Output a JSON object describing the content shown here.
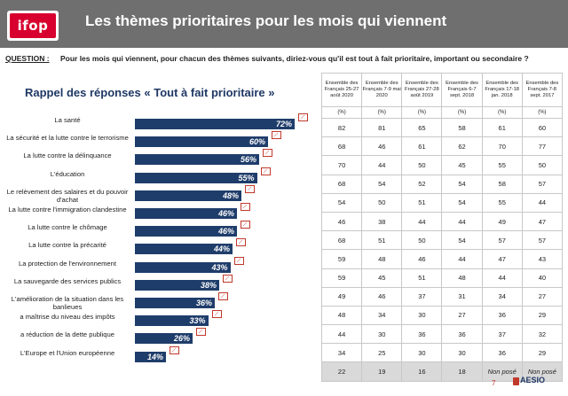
{
  "header": {
    "logo": "ifop",
    "title": "Les thèmes prioritaires pour les mois qui viennent",
    "bg_color": "#6f6f6f"
  },
  "question": {
    "label": "QUESTION :",
    "text": "Pour les mois qui viennent, pour chacun des thèmes suivants, diriez-vous qu'il est tout à fait prioritaire, important ou secondaire ?"
  },
  "subtitle": "Rappel des réponses « Tout à fait prioritaire »",
  "chart_data": {
    "type": "bar",
    "orientation": "horizontal",
    "categories": [
      "La santé",
      "La sécurité et la lutte contre le terrorisme",
      "La lutte contre la délinquance",
      "L'éducation",
      "Le relèvement des salaires et du pouvoir d'achat",
      "La lutte contre l'immigration clandestine",
      "La lutte contre le chômage",
      "La lutte contre la précarité",
      "La protection de l'environnement",
      "La sauvegarde des services publics",
      "L'amélioration de la situation dans les banlieues",
      "a maîtrise du niveau des impôts",
      "a réduction de la dette publique",
      "L'Europe et l'Union européenne"
    ],
    "values": [
      72,
      60,
      56,
      55,
      48,
      46,
      46,
      44,
      43,
      38,
      36,
      33,
      26,
      14
    ],
    "value_labels": [
      "72%",
      "60%",
      "56%",
      "55%",
      "48%",
      "46%",
      "46%",
      "44%",
      "43%",
      "38%",
      "36%",
      "33%",
      "26%",
      "14%"
    ],
    "bar_color": "#1f3d6b",
    "xlim": [
      0,
      100
    ],
    "title": "Rappel des réponses « Tout à fait prioritaire »"
  },
  "table": {
    "headers": [
      "Ensemble des Français 25-27 août 2020",
      "Ensemble des Français 7-9 mai 2020",
      "Ensemble des Français 27-28 août 2019",
      "Ensemble des Français 6-7 sept. 2018",
      "Ensemble des Français 17-18 jan. 2018",
      "Ensemble des Français 7-8 sept. 2017"
    ],
    "unit_row": [
      "(%)",
      "(%)",
      "(%)",
      "(%)",
      "(%)",
      "(%)"
    ],
    "rows": [
      [
        "82",
        "81",
        "65",
        "58",
        "61",
        "60"
      ],
      [
        "68",
        "46",
        "61",
        "62",
        "70",
        "77"
      ],
      [
        "70",
        "44",
        "50",
        "45",
        "55",
        "50"
      ],
      [
        "68",
        "54",
        "52",
        "54",
        "58",
        "57"
      ],
      [
        "54",
        "50",
        "51",
        "54",
        "55",
        "44"
      ],
      [
        "46",
        "38",
        "44",
        "44",
        "49",
        "47"
      ],
      [
        "68",
        "51",
        "50",
        "54",
        "57",
        "57"
      ],
      [
        "59",
        "48",
        "46",
        "44",
        "47",
        "43"
      ],
      [
        "59",
        "45",
        "51",
        "48",
        "44",
        "40"
      ],
      [
        "49",
        "46",
        "37",
        "31",
        "34",
        "27"
      ],
      [
        "48",
        "34",
        "30",
        "27",
        "36",
        "29"
      ],
      [
        "44",
        "30",
        "36",
        "36",
        "37",
        "32"
      ],
      [
        "34",
        "25",
        "30",
        "30",
        "36",
        "29"
      ],
      [
        "22",
        "19",
        "16",
        "18",
        "Non posé",
        "Non posé"
      ]
    ]
  },
  "footer": {
    "page": "7",
    "brand": "AESIO"
  }
}
